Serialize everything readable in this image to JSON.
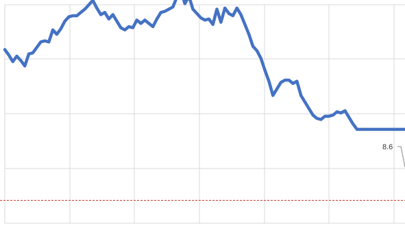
{
  "chart_data": {
    "type": "line",
    "grid": true,
    "colors": {
      "series": "#4472c4",
      "reference": "#c0392b",
      "grid": "#d9d9d9"
    },
    "xlim": [
      0,
      100
    ],
    "ylim": [
      0,
      20
    ],
    "reference_line": {
      "y": 2.1
    },
    "series": [
      {
        "x": [
          0,
          1,
          2,
          3,
          4,
          5,
          6,
          7,
          8,
          9,
          10,
          11,
          12,
          13,
          14,
          15,
          16,
          17,
          18,
          19,
          20,
          21,
          22,
          23,
          24,
          25,
          26,
          27,
          28,
          29,
          30,
          31,
          32,
          33,
          34,
          35,
          36,
          37,
          38,
          39,
          40,
          41,
          42,
          43,
          44,
          45,
          46,
          47,
          48,
          49,
          50,
          51,
          52,
          53,
          54,
          55,
          56,
          57,
          58,
          59,
          60,
          61,
          62,
          63,
          64,
          65,
          66,
          67,
          68,
          69,
          70,
          71,
          72,
          73,
          74,
          75,
          76,
          77,
          78,
          79,
          80,
          81,
          82,
          83,
          84,
          85,
          86,
          87,
          88,
          89,
          90,
          91,
          92,
          93,
          94,
          95,
          96,
          97,
          98,
          99,
          100
        ],
        "values": [
          15.9,
          15.4,
          14.8,
          15.3,
          14.9,
          14.4,
          15.5,
          15.6,
          16.1,
          16.6,
          16.7,
          16.6,
          17.7,
          17.3,
          17.8,
          18.5,
          18.9,
          19.0,
          19.0,
          19.3,
          19.6,
          20.0,
          20.4,
          19.7,
          19.1,
          19.3,
          18.7,
          19.1,
          18.5,
          17.9,
          17.7,
          18.0,
          17.9,
          18.6,
          18.3,
          18.6,
          18.3,
          18.0,
          18.7,
          19.3,
          19.4,
          19.6,
          19.8,
          20.7,
          21.3,
          20.1,
          20.8,
          19.6,
          19.2,
          18.8,
          18.6,
          18.7,
          18.2,
          19.6,
          18.4,
          19.7,
          19.2,
          19.0,
          19.7,
          19.1,
          18.2,
          17.3,
          16.2,
          15.8,
          15.1,
          14.0,
          13.0,
          11.7,
          12.3,
          12.9,
          13.1,
          13.1,
          12.8,
          13.0,
          11.7,
          11.1,
          10.5,
          9.9,
          9.6,
          9.5,
          9.8,
          9.8,
          9.9,
          10.2,
          10.1,
          10.3,
          9.7,
          9.1,
          8.6,
          8.6,
          8.6,
          8.6,
          8.6,
          8.6,
          8.6,
          8.6,
          8.6,
          8.6,
          8.6,
          8.6,
          8.6
        ]
      }
    ],
    "annotations": [
      {
        "x": 100,
        "y": 8.6,
        "text": "8.6"
      }
    ]
  }
}
